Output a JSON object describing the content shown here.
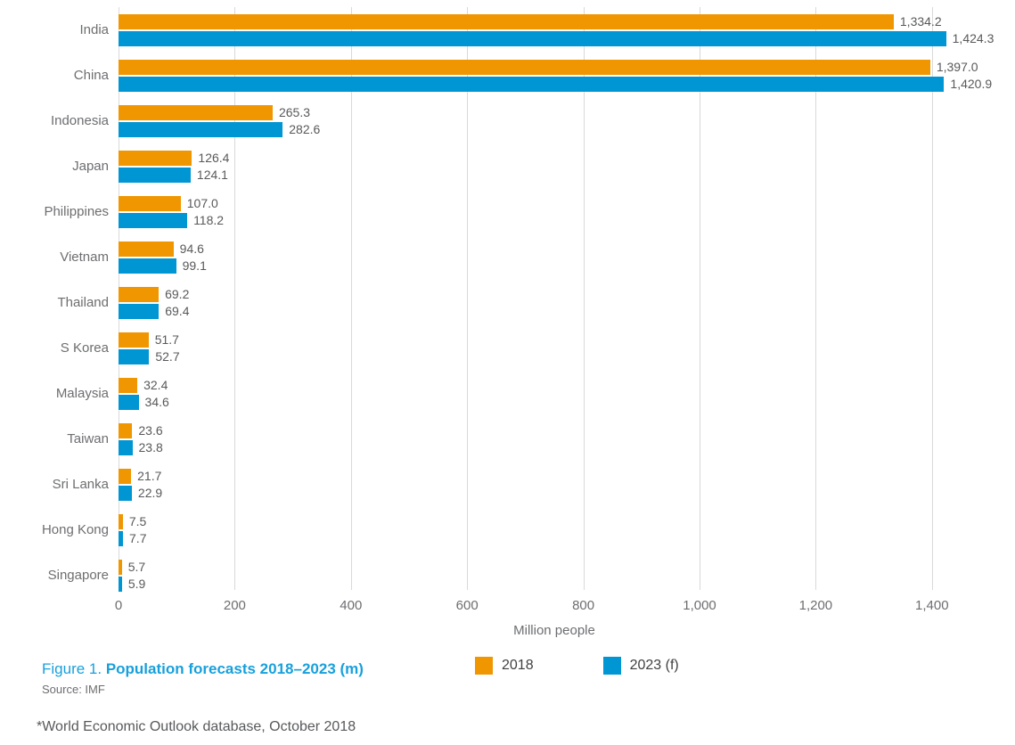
{
  "chart_data": {
    "type": "bar",
    "orientation": "horizontal",
    "categories": [
      "India",
      "China",
      "Indonesia",
      "Japan",
      "Philippines",
      "Vietnam",
      "Thailand",
      "S Korea",
      "Malaysia",
      "Taiwan",
      "Sri Lanka",
      "Hong Kong",
      "Singapore"
    ],
    "series": [
      {
        "name": "2018",
        "color": "#F09600",
        "values": [
          1334.2,
          1397.0,
          265.3,
          126.4,
          107.0,
          94.6,
          69.2,
          51.7,
          32.4,
          23.6,
          21.7,
          7.5,
          5.7
        ],
        "labels": [
          "1,334.2",
          "1,397.0",
          "265.3",
          "126.4",
          "107.0",
          "94.6",
          "69.2",
          "51.7",
          "32.4",
          "23.6",
          "21.7",
          "7.5",
          "5.7"
        ]
      },
      {
        "name": "2023 (f)",
        "color": "#0095D3",
        "values": [
          1424.3,
          1420.9,
          282.6,
          124.1,
          118.2,
          99.1,
          69.4,
          52.7,
          34.6,
          23.8,
          22.9,
          7.7,
          5.9
        ],
        "labels": [
          "1,424.3",
          "1,420.9",
          "282.6",
          "124.1",
          "118.2",
          "99.1",
          "69.4",
          "52.7",
          "34.6",
          "23.8",
          "22.9",
          "7.7",
          "5.9"
        ]
      }
    ],
    "xlabel": "Million people",
    "xlim": [
      0,
      1500
    ],
    "xticks": [
      {
        "value": 0,
        "label": "0"
      },
      {
        "value": 200,
        "label": "200"
      },
      {
        "value": 400,
        "label": "400"
      },
      {
        "value": 600,
        "label": "600"
      },
      {
        "value": 800,
        "label": "800"
      },
      {
        "value": 1000,
        "label": "1,000"
      },
      {
        "value": 1200,
        "label": "1,200"
      },
      {
        "value": 1400,
        "label": "1,400"
      }
    ],
    "grid": "vertical",
    "legend_position": "bottom",
    "title": "Figure 1. Population forecasts 2018–2023 (m)"
  },
  "caption": {
    "prefix": "Figure 1. ",
    "title": "Population forecasts 2018–2023 (m)"
  },
  "source": "Source: IMF",
  "footnote": "*World Economic Outlook database, October 2018",
  "legend": [
    {
      "label": "2018",
      "color": "#F09600"
    },
    {
      "label": "2023 (f)",
      "color": "#0095D3"
    }
  ],
  "colors": {
    "series_2018": "#F09600",
    "series_2023": "#0095D3",
    "gridline": "#d9d9d9",
    "axis_text": "#6d6e71",
    "value_text": "#58595b",
    "caption_blue": "#18a0dc"
  }
}
